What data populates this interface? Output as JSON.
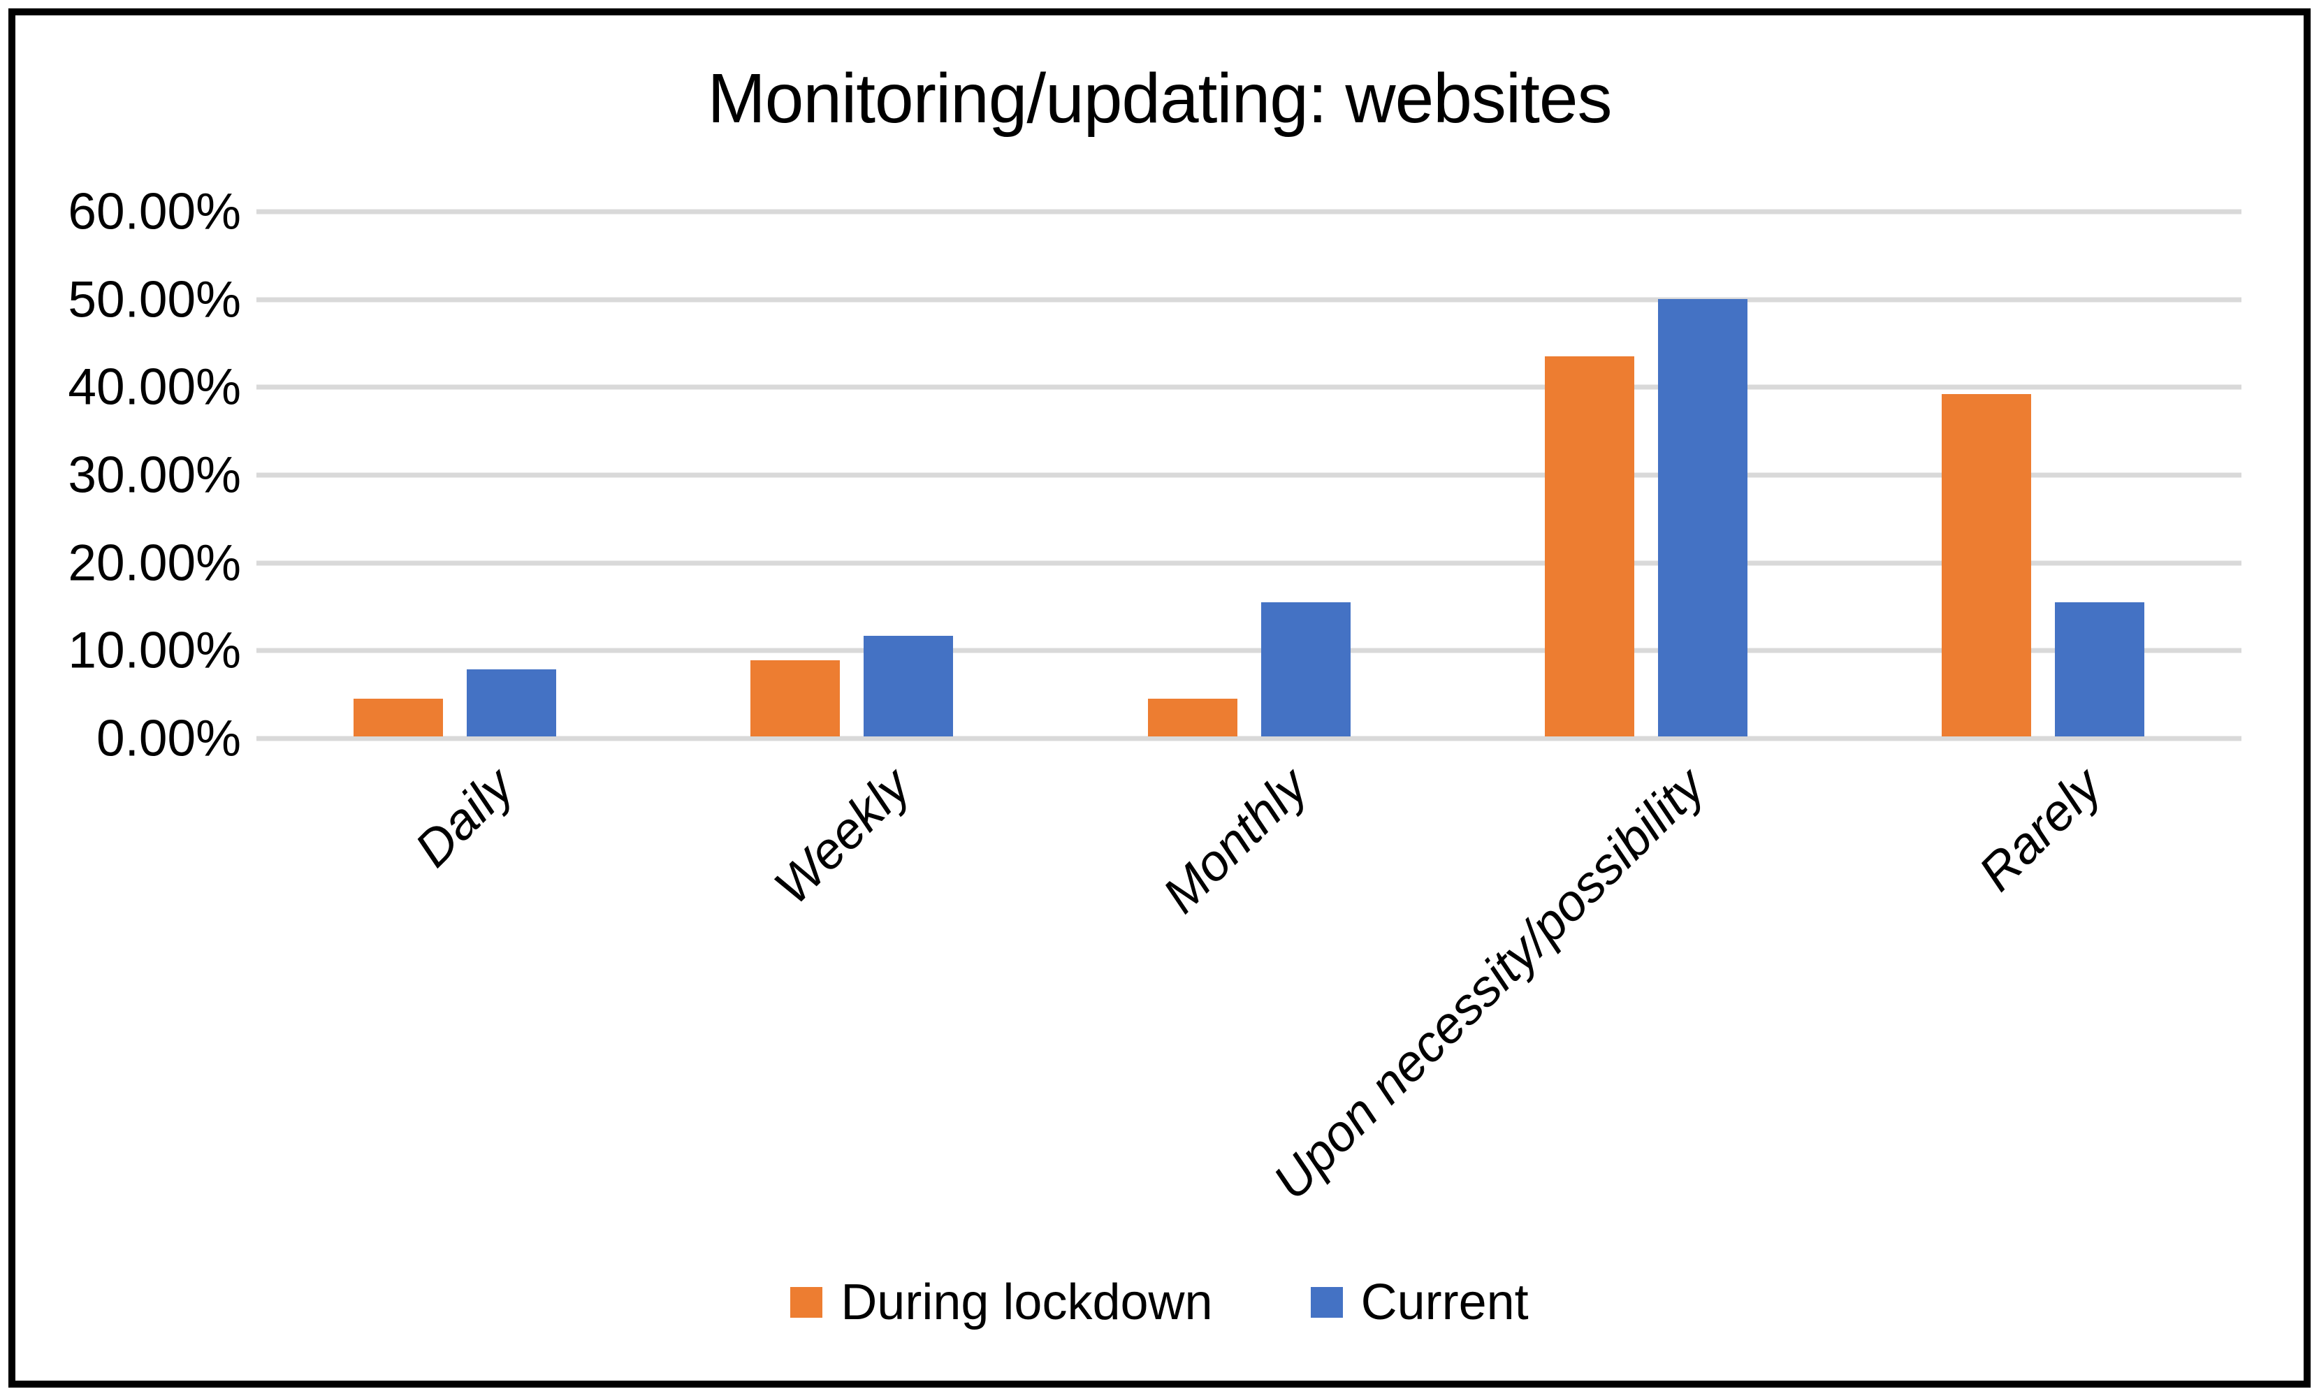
{
  "title": "Monitoring/updating: websites",
  "colors": {
    "during_lockdown": "#ED7D31",
    "current": "#4472C4",
    "gridline": "#D9D9D9",
    "text": "#000000",
    "border": "#000000",
    "background": "#FFFFFF"
  },
  "chart_data": {
    "type": "bar",
    "title": "Monitoring/updating: websites",
    "categories": [
      "Daily",
      "Weekly",
      "Monthly",
      "Upon necessity/possibility",
      "Rarely"
    ],
    "series": [
      {
        "name": "During lockdown",
        "color": "#ED7D31",
        "values": [
          4.35,
          8.7,
          4.35,
          43.48,
          39.13
        ]
      },
      {
        "name": "Current",
        "color": "#4472C4",
        "values": [
          7.69,
          11.54,
          15.38,
          50.0,
          15.38
        ]
      }
    ],
    "value_unit": "percent",
    "xlabel": "",
    "ylabel": "",
    "y_axis": {
      "min": 0,
      "max": 60,
      "step": 10,
      "tick_labels": [
        "0.00%",
        "10.00%",
        "20.00%",
        "30.00%",
        "40.00%",
        "50.00%",
        "60.00%"
      ]
    },
    "grid": true,
    "gridline_color": "#D9D9D9",
    "x_tick_rotation_deg": 45,
    "x_tick_style": "italic",
    "legend_position": "bottom"
  },
  "legend": {
    "items": [
      {
        "label": "During lockdown",
        "color": "#ED7D31"
      },
      {
        "label": "Current",
        "color": "#4472C4"
      }
    ]
  }
}
